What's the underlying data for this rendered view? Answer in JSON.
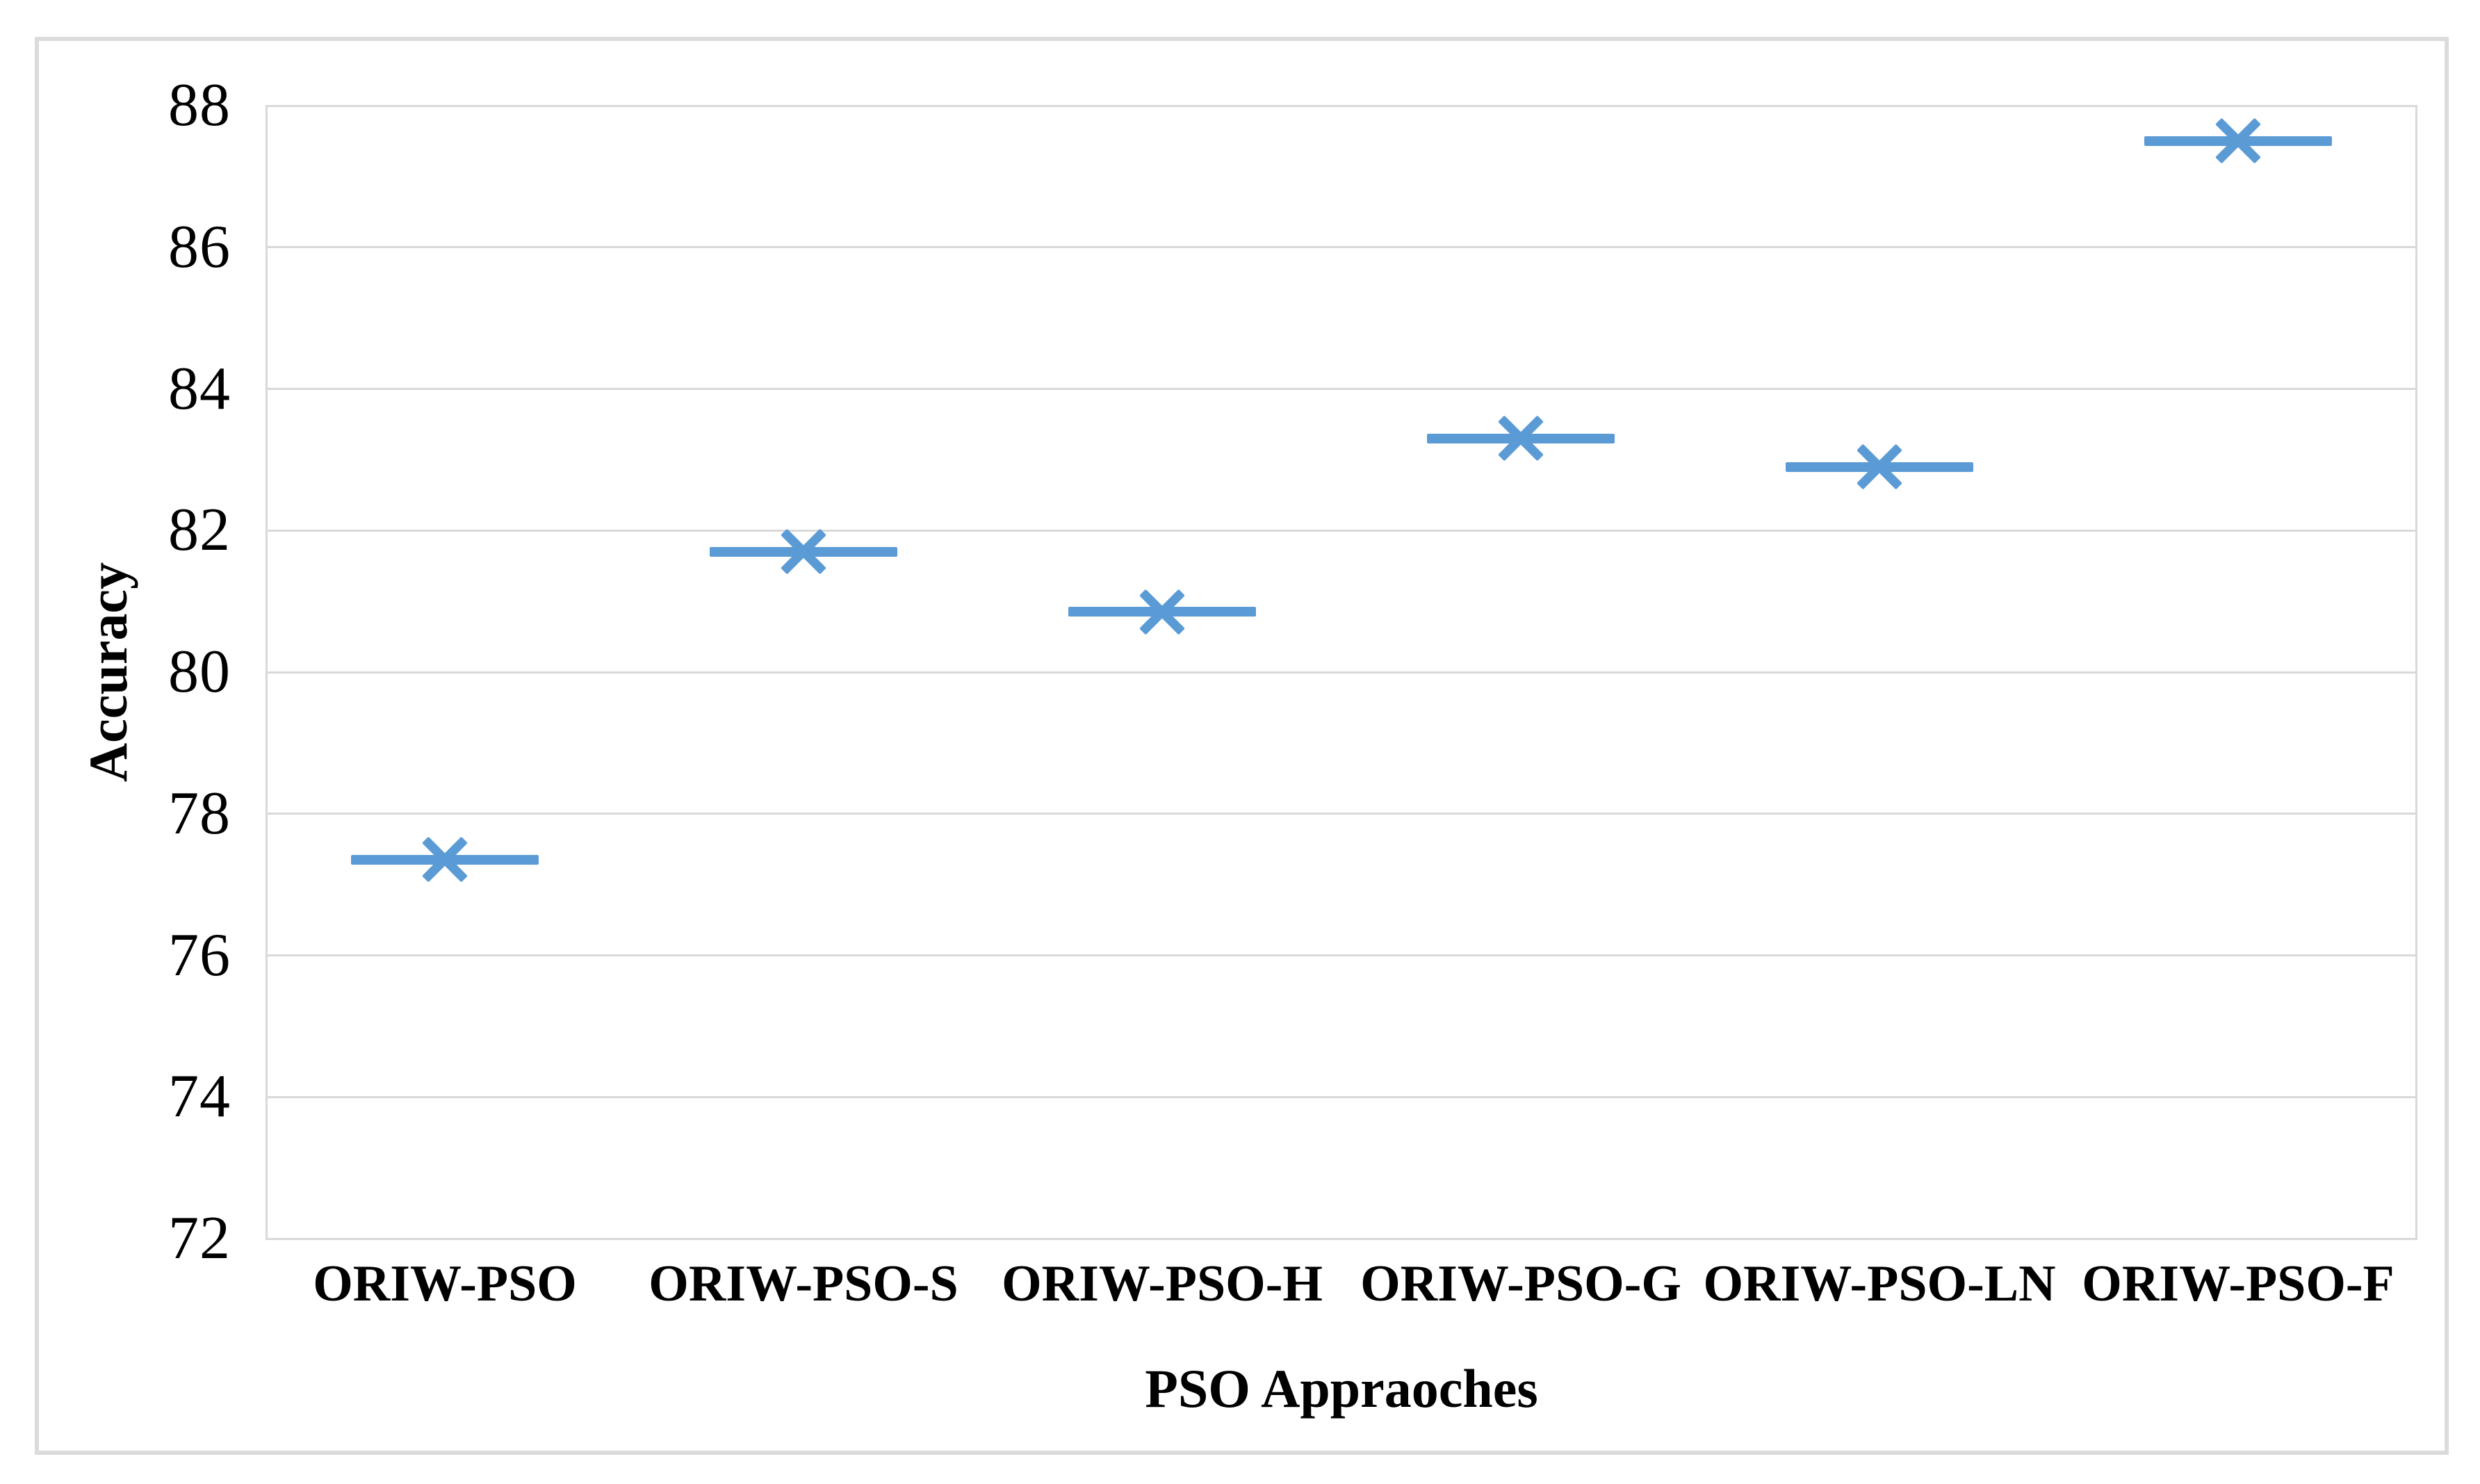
{
  "figure": {
    "ylabel": "Accuracy",
    "xlabel": "PSO Appraoches"
  },
  "chart_data": {
    "type": "scatter",
    "title": "",
    "categories": [
      "ORIW-PSO",
      "ORIW-PSO-S",
      "ORIW-PSO-H",
      "ORIW-PSO-G",
      "ORIW-PSO-LN",
      "ORIW-PSO-F"
    ],
    "values": [
      77.35,
      81.7,
      80.85,
      83.3,
      82.9,
      87.5
    ],
    "xlabel": "PSO Appraoches",
    "ylabel": "Accuracy",
    "ylim": [
      72,
      88
    ],
    "yticks": [
      72,
      74,
      76,
      78,
      80,
      82,
      84,
      86,
      88
    ],
    "grid": "horizontal-only",
    "legend": "none",
    "marker": "x-with-horizontal-dash",
    "marker_dash_width": 270,
    "colors": {
      "marker": "#5b9bd5",
      "gridline": "#d9d9d9",
      "figure_border": "#dbdbdb",
      "text": "#000000"
    }
  }
}
